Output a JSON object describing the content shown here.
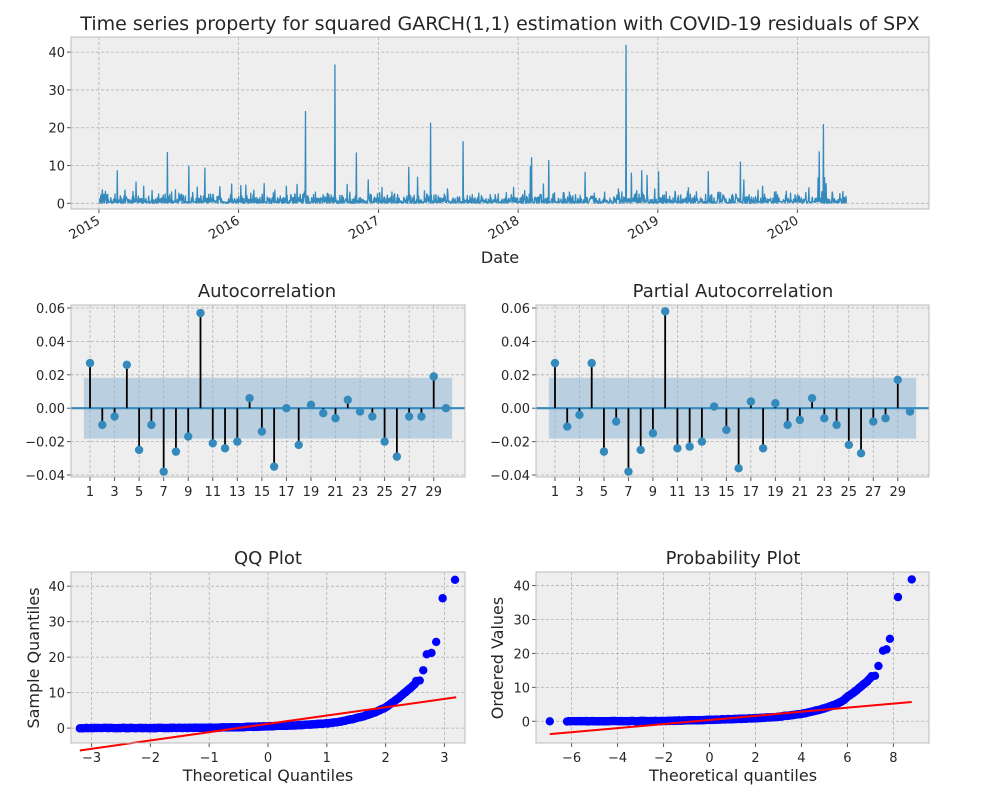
{
  "figure": {
    "title": "Time series property for squared GARCH(1,1) estimation with COVID-19 residuals of SPX"
  },
  "colors": {
    "series": "#348ABD",
    "stem": "#000000",
    "confidence_band": "#8FB6D6",
    "qq_points": "#0000FF",
    "reference_line": "#FF0000",
    "plot_background": "#EEEEEE",
    "grid": "#B2B2B2"
  },
  "chart_data": [
    {
      "id": "timeseries",
      "type": "line",
      "title": "",
      "xlabel": "Date",
      "ylabel": "",
      "x_ticks": [
        "2015",
        "2016",
        "2017",
        "2018",
        "2019",
        "2020"
      ],
      "y_ticks": [
        0,
        10,
        20,
        30,
        40
      ],
      "ylim": [
        -1.5,
        44
      ],
      "xlim": [
        "2014-10-20",
        "2020-12-10"
      ],
      "series_start": "2015-01-02",
      "series_end": "2020-05-08",
      "spikes": [
        [
          "2015-01-10",
          3.6
        ],
        [
          "2015-02-18",
          8.6
        ],
        [
          "2015-03-10",
          3.5
        ],
        [
          "2015-04-08",
          5.6
        ],
        [
          "2015-04-28",
          4.5
        ],
        [
          "2015-05-20",
          3.4
        ],
        [
          "2015-06-29",
          13.4
        ],
        [
          "2015-07-20",
          3.6
        ],
        [
          "2015-08-24",
          9.8
        ],
        [
          "2015-09-15",
          4.3
        ],
        [
          "2015-10-05",
          9.3
        ],
        [
          "2015-11-13",
          4.4
        ],
        [
          "2015-12-14",
          5.1
        ],
        [
          "2016-01-07",
          4.7
        ],
        [
          "2016-01-20",
          4.8
        ],
        [
          "2016-02-10",
          3.5
        ],
        [
          "2016-03-08",
          5.2
        ],
        [
          "2016-04-05",
          3.5
        ],
        [
          "2016-05-05",
          4.5
        ],
        [
          "2016-06-02",
          5.0
        ],
        [
          "2016-06-24",
          24.3
        ],
        [
          "2016-07-20",
          3.0
        ],
        [
          "2016-09-09",
          36.6
        ],
        [
          "2016-10-11",
          5.0
        ],
        [
          "2016-11-04",
          13.3
        ],
        [
          "2016-12-05",
          6.2
        ],
        [
          "2017-01-10",
          4.2
        ],
        [
          "2017-02-05",
          3.0
        ],
        [
          "2017-03-21",
          9.5
        ],
        [
          "2017-04-13",
          6.9
        ],
        [
          "2017-05-01",
          3.3
        ],
        [
          "2017-05-17",
          21.2
        ],
        [
          "2017-06-30",
          3.8
        ],
        [
          "2017-08-10",
          16.3
        ],
        [
          "2017-09-20",
          2.7
        ],
        [
          "2017-11-10",
          2.5
        ],
        [
          "2017-12-20",
          4.2
        ],
        [
          "2018-01-18",
          3.4
        ],
        [
          "2018-02-02",
          9.8
        ],
        [
          "2018-02-05",
          12.1
        ],
        [
          "2018-03-08",
          5.1
        ],
        [
          "2018-03-22",
          11.3
        ],
        [
          "2018-04-06",
          2.8
        ],
        [
          "2018-05-15",
          3.0
        ],
        [
          "2018-06-25",
          8.2
        ],
        [
          "2018-08-15",
          3.0
        ],
        [
          "2018-09-20",
          3.8
        ],
        [
          "2018-10-10",
          41.8
        ],
        [
          "2018-10-24",
          8.0
        ],
        [
          "2018-11-07",
          3.4
        ],
        [
          "2018-11-20",
          8.6
        ],
        [
          "2018-12-04",
          7.4
        ],
        [
          "2018-12-24",
          3.8
        ],
        [
          "2019-01-03",
          8.4
        ],
        [
          "2019-02-15",
          3.2
        ],
        [
          "2019-03-22",
          4.1
        ],
        [
          "2019-05-13",
          8.4
        ],
        [
          "2019-06-10",
          3.0
        ],
        [
          "2019-08-05",
          10.9
        ],
        [
          "2019-08-14",
          6.2
        ],
        [
          "2019-09-20",
          3.5
        ],
        [
          "2019-10-02",
          4.5
        ],
        [
          "2019-12-03",
          3.2
        ],
        [
          "2020-01-31",
          4.1
        ],
        [
          "2020-02-24",
          6.7
        ],
        [
          "2020-02-27",
          13.6
        ],
        [
          "2020-03-09",
          20.8
        ],
        [
          "2020-03-12",
          6.8
        ],
        [
          "2020-03-16",
          5.2
        ],
        [
          "2020-04-01",
          3.0
        ],
        [
          "2020-04-21",
          2.6
        ]
      ]
    },
    {
      "id": "acf",
      "type": "stem",
      "title": "Autocorrelation",
      "xlabel": "",
      "ylabel": "",
      "x_ticks": [
        1,
        3,
        5,
        7,
        9,
        11,
        13,
        15,
        17,
        19,
        21,
        23,
        25,
        27,
        29
      ],
      "y_ticks": [
        -0.04,
        -0.02,
        0.0,
        0.02,
        0.04,
        0.06
      ],
      "ylim": [
        -0.0412,
        0.0618
      ],
      "xlim": [
        -0.55,
        31.55
      ],
      "confidence_band": [
        -0.0182,
        0.0182
      ],
      "lags": [
        1,
        2,
        3,
        4,
        5,
        6,
        7,
        8,
        9,
        10,
        11,
        12,
        13,
        14,
        15,
        16,
        17,
        18,
        19,
        20,
        21,
        22,
        23,
        24,
        25,
        26,
        27,
        28,
        29,
        30
      ],
      "values": [
        0.027,
        -0.01,
        -0.005,
        0.026,
        -0.025,
        -0.01,
        -0.038,
        -0.026,
        -0.017,
        0.057,
        -0.021,
        -0.024,
        -0.02,
        0.006,
        -0.014,
        -0.035,
        0.0,
        -0.022,
        0.002,
        -0.003,
        -0.006,
        0.005,
        -0.002,
        -0.005,
        -0.02,
        -0.029,
        -0.005,
        -0.005,
        0.019,
        0.0
      ]
    },
    {
      "id": "pacf",
      "type": "stem",
      "title": "Partial Autocorrelation",
      "xlabel": "",
      "ylabel": "",
      "x_ticks": [
        1,
        3,
        5,
        7,
        9,
        11,
        13,
        15,
        17,
        19,
        21,
        23,
        25,
        27,
        29
      ],
      "y_ticks": [
        -0.04,
        -0.02,
        0.0,
        0.02,
        0.04,
        0.06
      ],
      "ylim": [
        -0.0412,
        0.0618
      ],
      "xlim": [
        -0.55,
        31.55
      ],
      "confidence_band": [
        -0.0182,
        0.0182
      ],
      "lags": [
        1,
        2,
        3,
        4,
        5,
        6,
        7,
        8,
        9,
        10,
        11,
        12,
        13,
        14,
        15,
        16,
        17,
        18,
        19,
        20,
        21,
        22,
        23,
        24,
        25,
        26,
        27,
        28,
        29,
        30
      ],
      "values": [
        0.027,
        -0.011,
        -0.004,
        0.027,
        -0.026,
        -0.008,
        -0.038,
        -0.025,
        -0.015,
        0.058,
        -0.024,
        -0.023,
        -0.02,
        0.001,
        -0.013,
        -0.036,
        0.004,
        -0.024,
        0.003,
        -0.01,
        -0.007,
        0.006,
        -0.006,
        -0.01,
        -0.022,
        -0.027,
        -0.008,
        -0.006,
        0.017,
        -0.002
      ]
    },
    {
      "id": "qq",
      "type": "scatter",
      "title": "QQ Plot",
      "xlabel": "Theoretical Quantiles",
      "ylabel": "Sample Quantiles",
      "x_ticks": [
        -3,
        -2,
        -1,
        0,
        1,
        2,
        3
      ],
      "y_ticks": [
        0,
        10,
        20,
        30,
        40
      ],
      "xlim": [
        -3.35,
        3.35
      ],
      "ylim": [
        -4.2,
        44
      ],
      "curve_x": [
        -3.2,
        -2.0,
        -1.0,
        -0.5,
        0.0,
        0.5,
        1.0,
        1.2,
        1.4,
        1.6,
        1.8,
        2.0,
        2.1,
        2.2,
        2.3,
        2.4,
        2.5
      ],
      "curve_y": [
        0.0,
        0.02,
        0.1,
        0.25,
        0.5,
        0.8,
        1.3,
        1.7,
        2.4,
        3.2,
        4.3,
        5.8,
        7.0,
        8.2,
        9.6,
        11.0,
        12.5
      ],
      "extreme_points": [
        [
          2.52,
          13.3
        ],
        [
          2.58,
          13.4
        ],
        [
          2.64,
          16.3
        ],
        [
          2.7,
          20.8
        ],
        [
          2.78,
          21.2
        ],
        [
          2.86,
          24.3
        ],
        [
          2.97,
          36.6
        ],
        [
          3.18,
          41.8
        ]
      ],
      "line": {
        "x": [
          -3.2,
          3.2
        ],
        "y": [
          -6.3,
          8.7
        ]
      }
    },
    {
      "id": "probplot",
      "type": "scatter",
      "title": "Probability Plot",
      "xlabel": "Theoretical quantiles",
      "ylabel": "Ordered Values",
      "x_ticks": [
        -6,
        -4,
        -2,
        0,
        2,
        4,
        6,
        8
      ],
      "y_ticks": [
        0,
        10,
        20,
        30,
        40
      ],
      "xlim": [
        -7.55,
        9.55
      ],
      "ylim": [
        -6.4,
        44
      ],
      "curve_x": [
        -6.2,
        -4.0,
        -2.0,
        0.0,
        2.0,
        3.0,
        4.0,
        4.5,
        5.0,
        5.5,
        5.8,
        6.0,
        6.3,
        6.6,
        6.9,
        7.0
      ],
      "curve_y": [
        0.0,
        0.02,
        0.1,
        0.4,
        0.9,
        1.3,
        2.2,
        2.9,
        3.8,
        5.0,
        6.0,
        7.2,
        8.6,
        10.3,
        12.0,
        12.8
      ],
      "extreme_points": [
        [
          -6.95,
          0.0
        ],
        [
          7.05,
          13.3
        ],
        [
          7.2,
          13.4
        ],
        [
          7.35,
          16.3
        ],
        [
          7.55,
          20.8
        ],
        [
          7.7,
          21.2
        ],
        [
          7.85,
          24.3
        ],
        [
          8.2,
          36.6
        ],
        [
          8.8,
          41.8
        ]
      ],
      "line": {
        "x": [
          -6.95,
          8.8
        ],
        "y": [
          -3.8,
          5.7
        ]
      }
    }
  ]
}
